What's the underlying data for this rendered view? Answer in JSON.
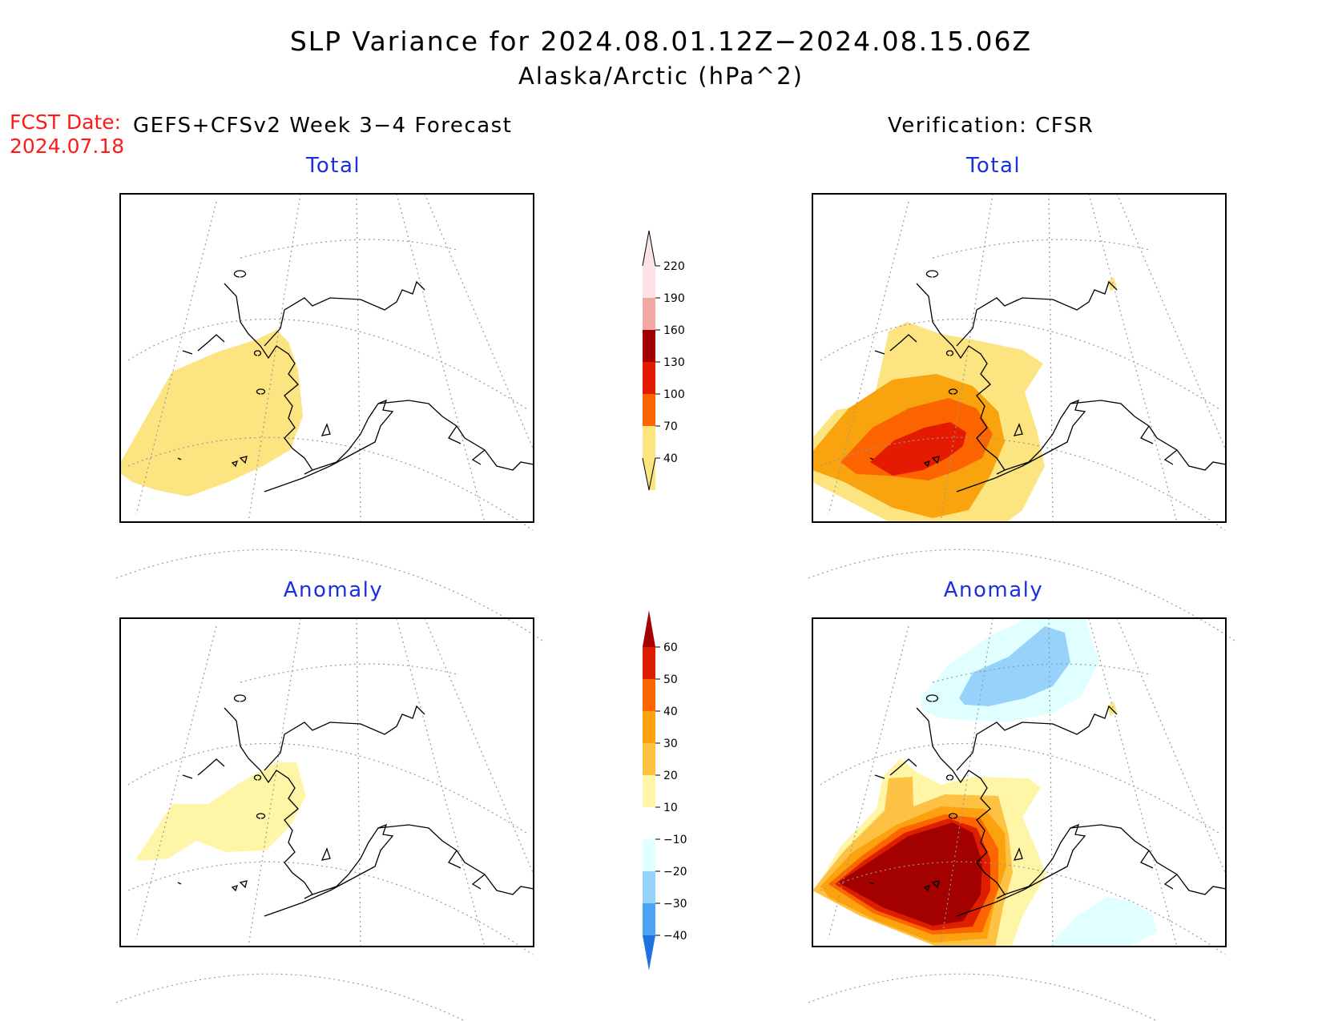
{
  "figure": {
    "title": "SLP Variance for 2024.08.01.12Z−2024.08.15.06Z",
    "subtitle": "Alaska/Arctic (hPa^2)",
    "fcst_date_label": "FCST Date:",
    "fcst_date_value": "2024.07.18",
    "forecast_header": "GEFS+CFSv2 Week 3−4 Forecast",
    "verification_header": "Verification: CFSR"
  },
  "panels": {
    "forecast_total": {
      "title": "Total"
    },
    "verification_total": {
      "title": "Total"
    },
    "forecast_anomaly": {
      "title": "Anomaly"
    },
    "verification_anomaly": {
      "title": "Anomaly"
    }
  },
  "colorbars": {
    "total": {
      "levels": [
        "40",
        "70",
        "100",
        "130",
        "160",
        "190",
        "220"
      ],
      "colors": [
        "#fce480",
        "#f9a30e",
        "#fc6400",
        "#e41b00",
        "#a10000",
        "#f3a6a6",
        "#fde3e3"
      ]
    },
    "anomaly": {
      "levels": [
        "60",
        "50",
        "40",
        "30",
        "20",
        "10",
        "−10",
        "−20",
        "−30",
        "−40"
      ],
      "colors": [
        "#a30000",
        "#dd1f00",
        "#fc6600",
        "#fca20e",
        "#fdc143",
        "#fff5a6",
        "#ffffff",
        "#e0ffff",
        "#97d2fb",
        "#4aa4f2",
        "#1f72e0"
      ]
    }
  },
  "colors": {
    "title_blue": "#1a2fe0",
    "fcst_red": "#ff1a1a"
  }
}
